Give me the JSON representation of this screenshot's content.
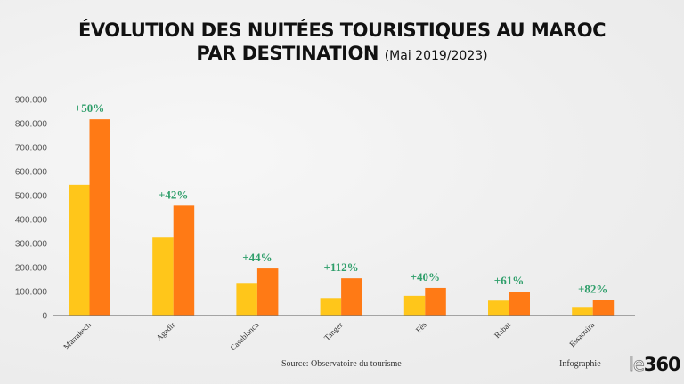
{
  "header": {
    "title_line1": "ÉVOLUTION DES NUITÉES TOURISTIQUES AU MAROC",
    "title_line2": "PAR DESTINATION",
    "title_period": "(Mai 2019/2023)"
  },
  "footer": {
    "source": "Source: Observatoire du tourisme",
    "credit": "Infographie",
    "logo_le": "le",
    "logo_num": "360"
  },
  "colors": {
    "series_2019": "#FFC61A",
    "series_2023": "#FF7A15",
    "growth_label": "#2E9E6A",
    "axis": "#777777"
  },
  "chart_data": {
    "type": "bar",
    "title": "ÉVOLUTION DES NUITÉES TOURISTIQUES AU MAROC PAR DESTINATION (Mai 2019/2023)",
    "xlabel": "",
    "ylabel": "",
    "ylim": [
      0,
      900000
    ],
    "yticks": [
      0,
      100000,
      200000,
      300000,
      400000,
      500000,
      600000,
      700000,
      800000,
      900000
    ],
    "ytick_labels": [
      "0",
      "100.000",
      "200.000",
      "300.000",
      "400.000",
      "500.000",
      "600.000",
      "700.000",
      "800.000",
      "900.000"
    ],
    "grid": false,
    "legend": "none",
    "categories": [
      "Marrakech",
      "Agadir",
      "Casablanca",
      "Tanger",
      "Fès",
      "Rabat",
      "Essaouira"
    ],
    "series": [
      {
        "name": "Mai 2019",
        "values": [
          545000,
          325000,
          136000,
          73000,
          82000,
          62000,
          36000
        ]
      },
      {
        "name": "Mai 2023",
        "values": [
          818000,
          458000,
          196000,
          155000,
          115000,
          100000,
          65000
        ]
      }
    ],
    "annotations": [
      "+50%",
      "+42%",
      "+44%",
      "+112%",
      "+40%",
      "+61%",
      "+82%"
    ],
    "source": "Source: Observatoire du tourisme"
  }
}
